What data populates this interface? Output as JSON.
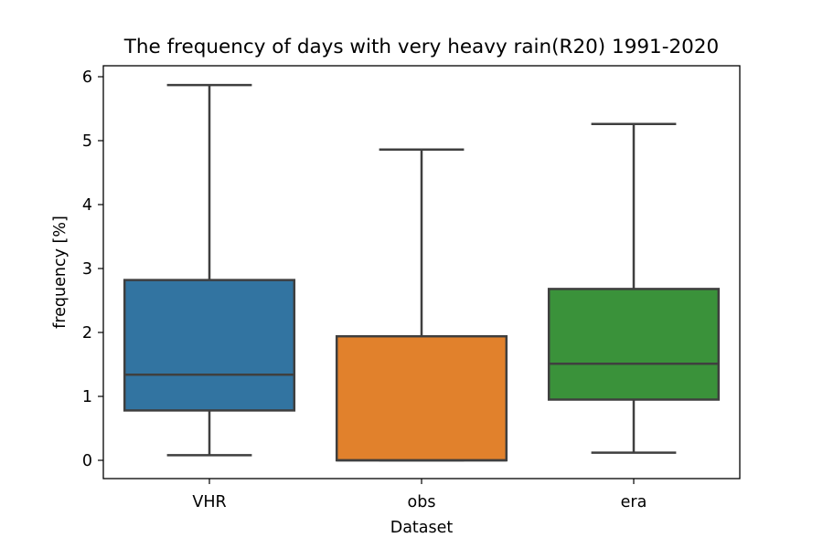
{
  "chart_data": {
    "type": "box",
    "title": "The frequency of days with very heavy rain(R20) 1991-2020",
    "xlabel": "Dataset",
    "ylabel": "frequency [%]",
    "ylim": [
      -0.3,
      6.18
    ],
    "yticks": [
      0,
      1,
      2,
      3,
      4,
      5,
      6
    ],
    "grid": false,
    "categories": [
      "VHR",
      "obs",
      "era"
    ],
    "boxes": [
      {
        "category": "VHR",
        "whisker_low": 0.08,
        "q1": 0.78,
        "median": 1.34,
        "q3": 2.82,
        "whisker_high": 5.87,
        "color": "#3274a1"
      },
      {
        "category": "obs",
        "whisker_low": 0.0,
        "q1": 0.0,
        "median": 0.0,
        "q3": 1.94,
        "whisker_high": 4.86,
        "color": "#e1812c"
      },
      {
        "category": "era",
        "whisker_low": 0.12,
        "q1": 0.95,
        "median": 1.51,
        "q3": 2.68,
        "whisker_high": 5.26,
        "color": "#3a923a"
      }
    ]
  }
}
